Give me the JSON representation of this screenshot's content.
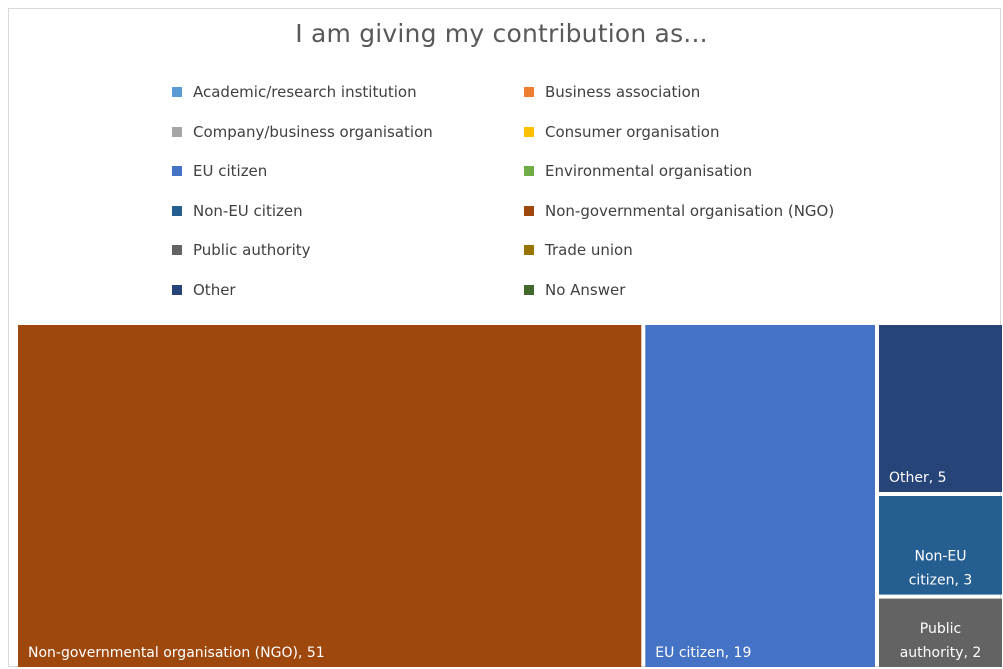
{
  "chart_data": {
    "type": "treemap",
    "title": "I am giving my contribution as...",
    "legend": [
      {
        "name": "Academic/research institution",
        "color": "#5b9bd5"
      },
      {
        "name": "Business association",
        "color": "#ed7d31"
      },
      {
        "name": "Company/business organisation",
        "color": "#a5a5a5"
      },
      {
        "name": "Consumer organisation",
        "color": "#ffc000"
      },
      {
        "name": "EU citizen",
        "color": "#4472c4"
      },
      {
        "name": "Environmental organisation",
        "color": "#70ad47"
      },
      {
        "name": "Non-EU citizen",
        "color": "#255e91"
      },
      {
        "name": "Non-governmental organisation (NGO)",
        "color": "#9e480e"
      },
      {
        "name": "Public authority",
        "color": "#636363"
      },
      {
        "name": "Trade union",
        "color": "#997300"
      },
      {
        "name": "Other",
        "color": "#264478"
      },
      {
        "name": "No Answer",
        "color": "#43682b"
      }
    ],
    "data": [
      {
        "name": "Non-governmental organisation (NGO)",
        "value": 51,
        "color": "#9e480e",
        "label": "Non-governmental organisation (NGO), 51",
        "label_lines": [
          "Non-governmental organisation (NGO), 51"
        ]
      },
      {
        "name": "EU citizen",
        "value": 19,
        "color": "#4472c4",
        "label": "EU citizen, 19",
        "label_lines": [
          "EU citizen, 19"
        ]
      },
      {
        "name": "Other",
        "value": 5,
        "color": "#264478",
        "label": "Other, 5",
        "label_lines": [
          "Other, 5"
        ]
      },
      {
        "name": "Non-EU citizen",
        "value": 3,
        "color": "#255e91",
        "label": "Non-EU citizen, 3",
        "label_lines": [
          "Non-EU",
          "citizen, 3"
        ]
      },
      {
        "name": "Public authority",
        "value": 2,
        "color": "#636363",
        "label": "Public authority, 2",
        "label_lines": [
          "Public",
          "authority, 2"
        ]
      }
    ]
  }
}
